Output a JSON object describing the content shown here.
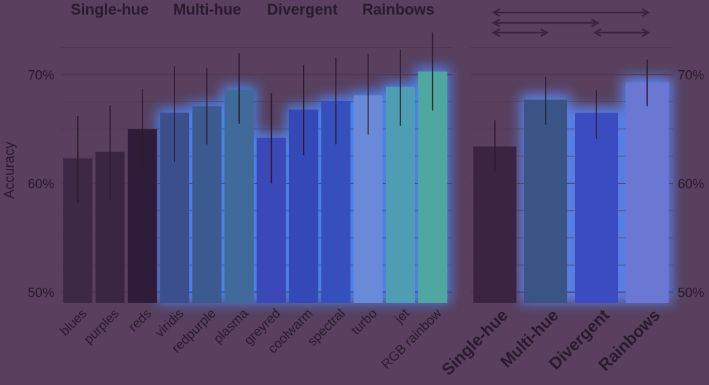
{
  "chart_data": [
    {
      "type": "bar",
      "ylabel": "Accuracy",
      "ylim": [
        0.49,
        0.74
      ],
      "yticks": [
        "50%",
        "60%",
        "70%"
      ],
      "ytick_values": [
        0.5,
        0.6,
        0.7
      ],
      "group_labels": [
        "Single-hue",
        "Multi-hue",
        "Divergent",
        "Rainbows"
      ],
      "categories": [
        "blues",
        "purples",
        "reds",
        "viridis",
        "redpurple",
        "plasma",
        "greyred",
        "coolwarm",
        "spectral",
        "turbo",
        "jet",
        "RGB rainbow"
      ],
      "values": [
        0.623,
        0.629,
        0.65,
        0.665,
        0.671,
        0.686,
        0.642,
        0.668,
        0.676,
        0.681,
        0.689,
        0.703
      ],
      "err_low": [
        0.582,
        0.585,
        0.612,
        0.62,
        0.636,
        0.655,
        0.6,
        0.626,
        0.636,
        0.645,
        0.653,
        0.667
      ],
      "err_high": [
        0.662,
        0.672,
        0.687,
        0.708,
        0.706,
        0.72,
        0.683,
        0.709,
        0.716,
        0.719,
        0.723,
        0.739
      ],
      "colors": [
        "#3d2845",
        "#3a2642",
        "#2f1c3a",
        "#3a4f8c",
        "#3b5a8f",
        "#3f6a9a",
        "#3a48b8",
        "#3449b5",
        "#3650bb",
        "#6a8ad8",
        "#4f9db3",
        "#4fa89f"
      ]
    },
    {
      "type": "bar",
      "ylim": [
        0.49,
        0.74
      ],
      "yticks": [
        "50%",
        "60%",
        "70%"
      ],
      "ytick_values": [
        0.5,
        0.6,
        0.7
      ],
      "categories": [
        "Single-hue",
        "Multi-hue",
        "Divergent",
        "Rainbows"
      ],
      "values": [
        0.634,
        0.677,
        0.665,
        0.693
      ],
      "err_low": [
        0.61,
        0.654,
        0.641,
        0.671
      ],
      "err_high": [
        0.658,
        0.698,
        0.686,
        0.714
      ],
      "colors": [
        "#3a2442",
        "#3a5585",
        "#3a4cc0",
        "#6a78d4"
      ],
      "comparison_brackets": [
        {
          "from": "Single-hue",
          "to": "Rainbows"
        },
        {
          "from": "Single-hue",
          "to": "Divergent"
        },
        {
          "from": "Single-hue",
          "to": "Multi-hue"
        },
        {
          "from": "Divergent",
          "to": "Rainbows"
        }
      ]
    }
  ]
}
